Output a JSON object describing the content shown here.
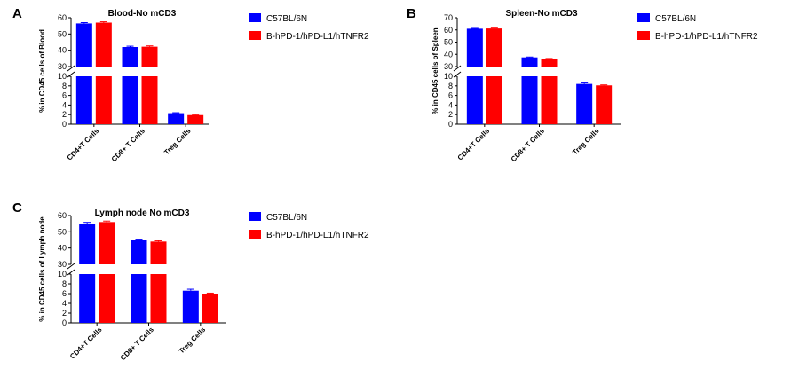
{
  "chart_data": [
    {
      "panel": "A",
      "type": "bar",
      "title": "Blood-No mCD3",
      "ylabel": "% in CD45 cells of Blood",
      "categories": [
        "CD4+T Cells",
        "CD8+ T Cells",
        "Treg Cells"
      ],
      "series": [
        {
          "name": "C57BL/6N",
          "values": [
            56.5,
            42.0,
            2.3
          ],
          "errors": [
            0.5,
            0.5,
            0.1
          ]
        },
        {
          "name": "B-hPD-1/hPD-L1/hTNFR2",
          "values": [
            57.0,
            42.2,
            1.9
          ],
          "errors": [
            0.5,
            0.5,
            0.1
          ]
        }
      ],
      "y_segments": {
        "lower": {
          "range": [
            0,
            10
          ],
          "ticks": [
            "0",
            "2",
            "4",
            "6",
            "8",
            "10"
          ]
        },
        "upper": {
          "range": [
            30,
            60
          ],
          "ticks": [
            "30",
            "40",
            "50",
            "60"
          ]
        }
      },
      "legend_position": "right",
      "grid": false
    },
    {
      "panel": "B",
      "type": "bar",
      "title": "Spleen-No mCD3",
      "ylabel": "% in CD45 cells of Spleen",
      "categories": [
        "CD4+T Cells",
        "CD8+ T Cells",
        "Treg Cells"
      ],
      "series": [
        {
          "name": "C57BL/6N",
          "values": [
            61.0,
            37.5,
            8.4
          ],
          "errors": [
            0.3,
            0.3,
            0.2
          ]
        },
        {
          "name": "B-hPD-1/hPD-L1/hTNFR2",
          "values": [
            61.2,
            36.2,
            8.1
          ],
          "errors": [
            0.3,
            0.4,
            0.1
          ]
        }
      ],
      "y_segments": {
        "lower": {
          "range": [
            0,
            10
          ],
          "ticks": [
            "0",
            "2",
            "4",
            "6",
            "8",
            "10"
          ]
        },
        "upper": {
          "range": [
            30,
            70
          ],
          "ticks": [
            "30",
            "40",
            "50",
            "60",
            "70"
          ]
        }
      },
      "legend_position": "right",
      "grid": false
    },
    {
      "panel": "C",
      "type": "bar",
      "title": "Lymph node No mCD3",
      "ylabel": "% in CD45 cells of Lymph node",
      "categories": [
        "CD4+T Cells",
        "CD8+ T Cells",
        "Treg Cells"
      ],
      "series": [
        {
          "name": "C57BL/6N",
          "values": [
            55.0,
            45.0,
            6.6
          ],
          "errors": [
            0.8,
            0.5,
            0.3
          ]
        },
        {
          "name": "B-hPD-1/hPD-L1/hTNFR2",
          "values": [
            56.0,
            44.0,
            6.0
          ],
          "errors": [
            0.6,
            0.5,
            0.1
          ]
        }
      ],
      "y_segments": {
        "lower": {
          "range": [
            0,
            10
          ],
          "ticks": [
            "0",
            "2",
            "4",
            "6",
            "8",
            "10"
          ]
        },
        "upper": {
          "range": [
            30,
            60
          ],
          "ticks": [
            "30",
            "40",
            "50",
            "60"
          ]
        }
      },
      "legend_position": "right",
      "grid": false
    }
  ],
  "colors": {
    "series_1": "#0000ff",
    "series_2": "#ff0000",
    "axis": "#000000"
  }
}
